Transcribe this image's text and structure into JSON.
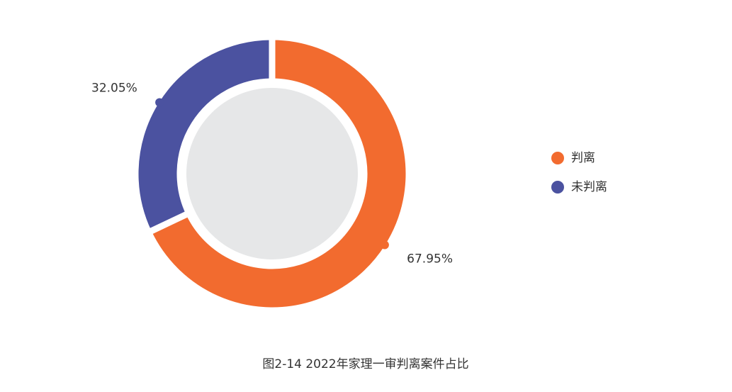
{
  "chart_data": {
    "type": "donut",
    "title": "图2-14  2022年家理一审判离案件占比",
    "categories": [
      "判离",
      "未判离"
    ],
    "values": [
      67.95,
      32.05
    ],
    "value_labels": [
      "67.95%",
      "32.05%"
    ],
    "colors": [
      "#f26b2f",
      "#4b52a0"
    ]
  }
}
